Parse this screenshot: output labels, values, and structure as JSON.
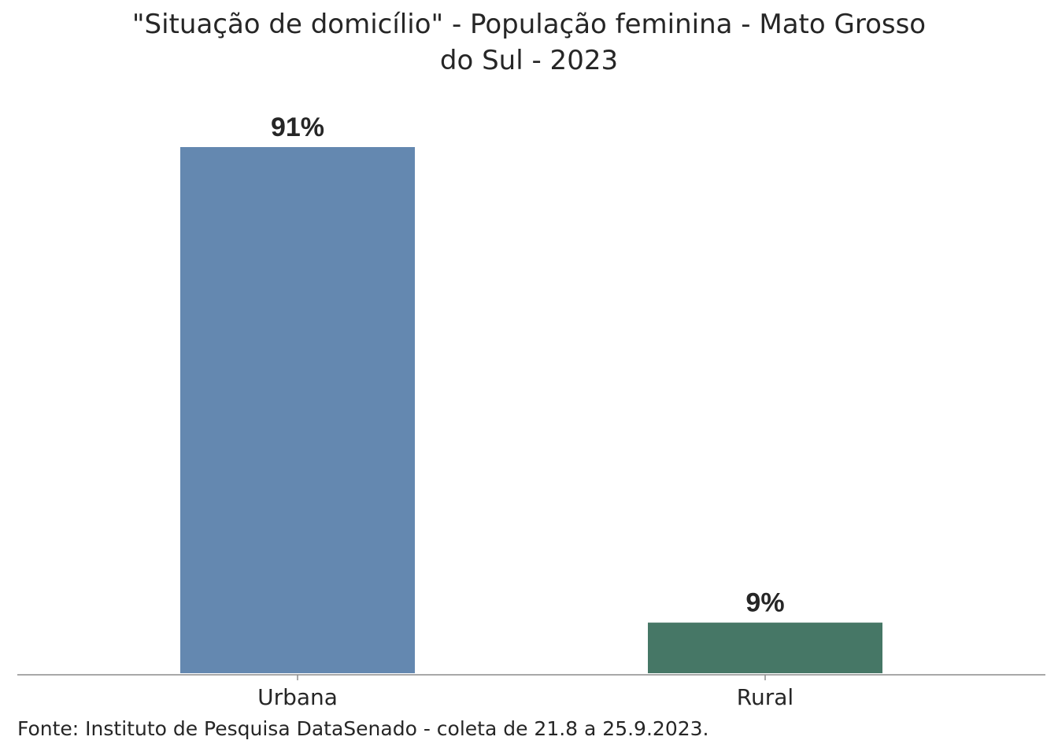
{
  "chart_data": {
    "type": "bar",
    "title_lines": [
      "\"Situação de domicílio\" - População feminina - Mato Grosso",
      "do Sul - 2023"
    ],
    "categories": [
      "Urbana",
      "Rural"
    ],
    "values": [
      91,
      9
    ],
    "data_labels": [
      "91%",
      "9%"
    ],
    "colors": [
      "#6488b0",
      "#467766"
    ],
    "xlabel": "",
    "ylabel": "",
    "ylim": [
      0,
      91
    ],
    "grid": false,
    "legend": "none",
    "source": "Fonte: Instituto de Pesquisa DataSenado - coleta de 21.8 a 25.9.2023."
  }
}
